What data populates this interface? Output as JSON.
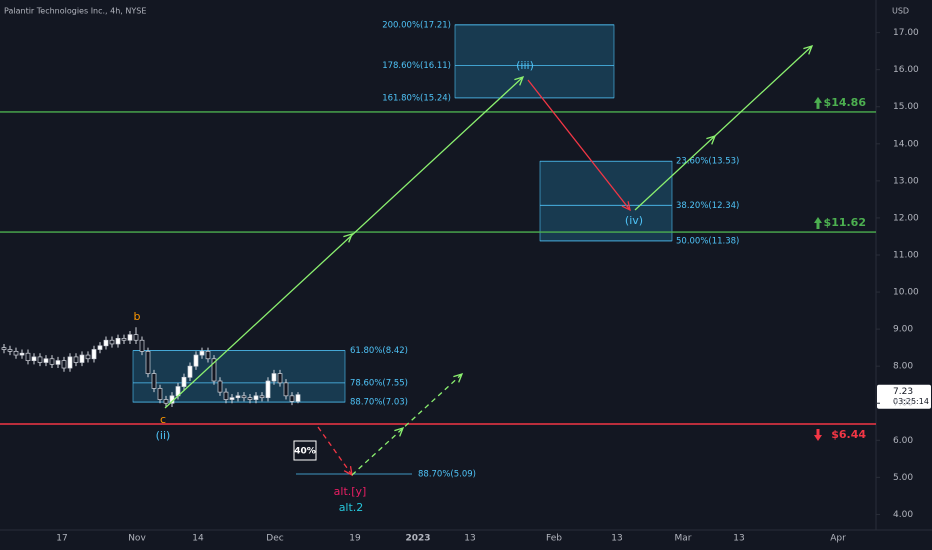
{
  "chart_data": {
    "type": "candlestick",
    "title": "Palantir Technologies Inc., 4h, NYSE",
    "currency": "USD",
    "ylim": [
      3.58,
      17.88
    ],
    "yticks": [
      {
        "value": 4,
        "label": "4.00"
      },
      {
        "value": 5,
        "label": "5.00"
      },
      {
        "value": 6,
        "label": "6.00"
      },
      {
        "value": 7,
        "label": "7.00"
      },
      {
        "value": 8,
        "label": "8.00"
      },
      {
        "value": 9,
        "label": "9.00"
      },
      {
        "value": 10,
        "label": "10.00"
      },
      {
        "value": 11,
        "label": "11.00"
      },
      {
        "value": 12,
        "label": "12.00"
      },
      {
        "value": 13,
        "label": "13.00"
      },
      {
        "value": 14,
        "label": "14.00"
      },
      {
        "value": 15,
        "label": "15.00"
      },
      {
        "value": 16,
        "label": "16.00"
      },
      {
        "value": 17,
        "label": "17.00"
      }
    ],
    "xticks": [
      "17",
      "Nov",
      "14",
      "Dec",
      "19",
      "2023",
      "13",
      "Feb",
      "13",
      "Mar",
      "13",
      "Apr"
    ],
    "open": [
      8.5,
      8.45,
      8.4,
      8.3,
      8.35,
      8.15,
      8.25,
      8.1,
      8.2,
      8.05,
      8.15,
      7.95,
      8.25,
      8.1,
      8.3,
      8.2,
      8.45,
      8.55,
      8.7,
      8.6,
      8.75,
      8.7,
      8.85,
      8.7,
      8.4,
      7.8,
      7.4,
      7.1,
      7.0,
      7.2,
      7.45,
      7.7,
      8.0,
      8.3,
      8.4,
      8.2,
      7.6,
      7.3,
      7.1,
      7.15,
      7.2,
      7.15,
      7.1,
      7.2,
      7.15,
      7.6,
      7.8,
      7.55,
      7.2,
      7.05
    ],
    "high": [
      8.6,
      8.55,
      8.5,
      8.45,
      8.45,
      8.35,
      8.35,
      8.3,
      8.3,
      8.25,
      8.25,
      8.35,
      8.35,
      8.4,
      8.4,
      8.55,
      8.65,
      8.8,
      8.8,
      8.85,
      8.85,
      8.95,
      9.05,
      8.8,
      8.5,
      7.9,
      7.5,
      7.2,
      7.3,
      7.55,
      7.8,
      8.1,
      8.4,
      8.5,
      8.5,
      8.3,
      7.7,
      7.4,
      7.25,
      7.3,
      7.3,
      7.25,
      7.3,
      7.3,
      7.7,
      7.9,
      7.9,
      7.65,
      7.3,
      7.3
    ],
    "low": [
      8.35,
      8.3,
      8.2,
      8.2,
      8.05,
      8.05,
      8.0,
      8.0,
      7.95,
      7.95,
      7.85,
      7.85,
      8.0,
      8.0,
      8.1,
      8.1,
      8.35,
      8.45,
      8.5,
      8.5,
      8.6,
      8.6,
      8.6,
      8.3,
      7.7,
      7.3,
      7.0,
      6.9,
      6.9,
      7.1,
      7.35,
      7.6,
      7.9,
      8.2,
      8.1,
      7.5,
      7.2,
      7.0,
      7.0,
      7.05,
      7.05,
      7.0,
      7.0,
      7.05,
      7.05,
      7.5,
      7.45,
      7.1,
      6.95,
      7.0
    ],
    "close": [
      8.45,
      8.4,
      8.3,
      8.35,
      8.15,
      8.25,
      8.1,
      8.2,
      8.05,
      8.15,
      7.95,
      8.25,
      8.1,
      8.3,
      8.2,
      8.45,
      8.55,
      8.7,
      8.6,
      8.75,
      8.7,
      8.85,
      8.7,
      8.4,
      7.8,
      7.4,
      7.1,
      7.0,
      7.2,
      7.45,
      7.7,
      8.0,
      8.3,
      8.4,
      8.2,
      7.6,
      7.3,
      7.1,
      7.15,
      7.2,
      7.15,
      7.1,
      7.2,
      7.15,
      7.6,
      7.8,
      7.55,
      7.2,
      7.05,
      7.23
    ],
    "last_price": {
      "value": 7.23,
      "label": "7.23",
      "countdown": "03:25:14"
    },
    "levels": [
      {
        "value": 14.86,
        "label": "$14.86",
        "color": "#4caf50",
        "direction": "up"
      },
      {
        "value": 11.62,
        "label": "$11.62",
        "color": "#4caf50",
        "direction": "up"
      },
      {
        "value": 6.44,
        "label": "$6.44",
        "color": "#f23645",
        "direction": "down"
      }
    ],
    "fib_zones": [
      {
        "levels": [
          {
            "value": 17.21,
            "label": "200.00%(17.21)"
          },
          {
            "value": 16.11,
            "label": "178.60%(16.11)"
          },
          {
            "value": 15.24,
            "label": "161.80%(15.24)"
          }
        ]
      },
      {
        "levels": [
          {
            "value": 13.53,
            "label": "23.60%(13.53)"
          },
          {
            "value": 12.34,
            "label": "38.20%(12.34)"
          },
          {
            "value": 11.38,
            "label": "50.00%(11.38)"
          }
        ]
      },
      {
        "levels": [
          {
            "value": 8.42,
            "label": "61.80%(8.42)"
          },
          {
            "value": 7.55,
            "label": "78.60%(7.55)"
          },
          {
            "value": 7.03,
            "label": "88.70%(7.03)"
          }
        ]
      },
      {
        "levels": [
          {
            "value": 5.09,
            "label": "88.70%(5.09)"
          }
        ]
      }
    ],
    "wave_labels": [
      "b",
      "c",
      "(ii)",
      "(iii)",
      "(iv)",
      "alt.[y]",
      "alt.2"
    ],
    "probability": "40%"
  }
}
